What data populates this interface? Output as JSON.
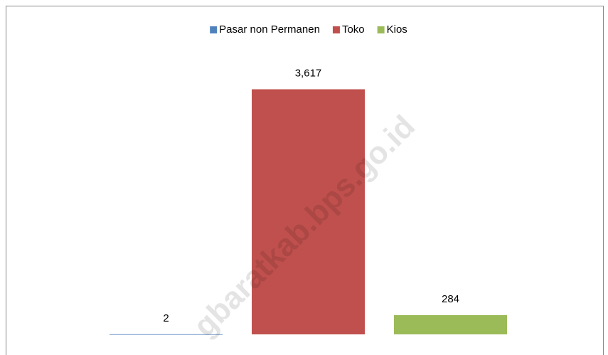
{
  "chart_data": {
    "type": "bar",
    "categories": [
      null
    ],
    "series": [
      {
        "name": "Pasar non Permanen",
        "color": "#4f81bd",
        "values": [
          2
        ],
        "value_labels": [
          "2"
        ]
      },
      {
        "name": "Toko",
        "color": "#c0504d",
        "values": [
          3617
        ],
        "value_labels": [
          "3,617"
        ]
      },
      {
        "name": "Kios",
        "color": "#9bbb59",
        "values": [
          284
        ],
        "value_labels": [
          "284"
        ]
      }
    ],
    "ylim": [
      0,
      4000
    ],
    "legend": "top",
    "watermark": "gbaratkab.bps.go.id"
  }
}
